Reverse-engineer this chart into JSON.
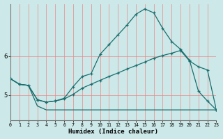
{
  "xlabel": "Humidex (Indice chaleur)",
  "background_color": "#cce8e8",
  "line_color": "#1a6e6e",
  "grid_color": "#e88888",
  "xlim": [
    0,
    23
  ],
  "ylim": [
    4.35,
    7.35
  ],
  "xticks": [
    0,
    1,
    2,
    3,
    4,
    5,
    6,
    7,
    8,
    9,
    10,
    11,
    12,
    13,
    14,
    15,
    16,
    17,
    18,
    19,
    20,
    21,
    22,
    23
  ],
  "yticks": [
    5,
    6
  ],
  "line1_x": [
    0,
    1,
    2,
    3,
    4,
    5,
    6,
    7,
    8,
    9,
    10,
    11,
    12,
    13,
    14,
    15,
    16,
    17,
    18,
    19,
    20,
    21,
    22,
    23
  ],
  "line1_y": [
    5.42,
    5.28,
    5.25,
    4.72,
    4.62,
    4.62,
    4.62,
    4.62,
    4.62,
    4.62,
    4.62,
    4.62,
    4.62,
    4.62,
    4.62,
    4.62,
    4.62,
    4.62,
    4.62,
    4.62,
    4.62,
    4.62,
    4.62,
    4.62
  ],
  "line2_x": [
    0,
    1,
    2,
    3,
    4,
    5,
    6,
    7,
    8,
    9,
    10,
    11,
    12,
    13,
    14,
    15,
    16,
    17,
    18,
    19,
    20,
    21,
    22,
    23
  ],
  "line2_y": [
    5.42,
    5.28,
    5.25,
    4.88,
    4.82,
    4.85,
    4.9,
    5.02,
    5.18,
    5.28,
    5.38,
    5.48,
    5.57,
    5.67,
    5.76,
    5.85,
    5.95,
    6.02,
    6.08,
    6.15,
    5.88,
    5.73,
    5.65,
    4.62
  ],
  "line3_x": [
    0,
    1,
    2,
    3,
    4,
    5,
    6,
    7,
    8,
    9,
    10,
    11,
    12,
    13,
    14,
    15,
    16,
    17,
    18,
    19,
    20,
    21,
    22,
    23
  ],
  "line3_y": [
    5.42,
    5.28,
    5.25,
    4.88,
    4.82,
    4.85,
    4.92,
    5.22,
    5.48,
    5.55,
    6.05,
    6.3,
    6.55,
    6.8,
    7.08,
    7.22,
    7.12,
    6.72,
    6.38,
    6.18,
    5.9,
    5.1,
    4.85,
    4.62
  ]
}
